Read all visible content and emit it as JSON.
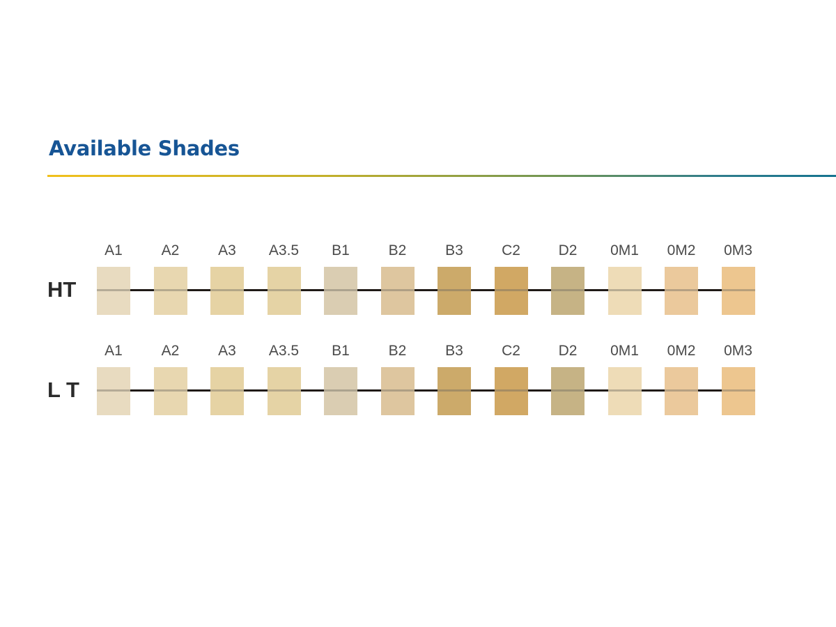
{
  "title": "Available Shades",
  "colors": {
    "title": "#175595",
    "rule_start": "#f1c01c",
    "rule_end": "#15738f"
  },
  "rows": [
    {
      "label": "HT",
      "shades": [
        {
          "code": "A1",
          "color": "#e8dbc0"
        },
        {
          "code": "A2",
          "color": "#e8d7b0"
        },
        {
          "code": "A3",
          "color": "#e6d3a4"
        },
        {
          "code": "A3.5",
          "color": "#e5d3a5"
        },
        {
          "code": "B1",
          "color": "#dacdb2"
        },
        {
          "code": "B2",
          "color": "#dec69f"
        },
        {
          "code": "B3",
          "color": "#ccaa6a"
        },
        {
          "code": "C2",
          "color": "#d1a864"
        },
        {
          "code": "D2",
          "color": "#c6b385"
        },
        {
          "code": "0M1",
          "color": "#eedcb7"
        },
        {
          "code": "0M2",
          "color": "#ebc99c"
        },
        {
          "code": "0M3",
          "color": "#edc68f"
        }
      ]
    },
    {
      "label": "L T",
      "shades": [
        {
          "code": "A1",
          "color": "#e8dbc0"
        },
        {
          "code": "A2",
          "color": "#e8d7b0"
        },
        {
          "code": "A3",
          "color": "#e6d3a4"
        },
        {
          "code": "A3.5",
          "color": "#e5d3a5"
        },
        {
          "code": "B1",
          "color": "#dacdb2"
        },
        {
          "code": "B2",
          "color": "#dec69f"
        },
        {
          "code": "B3",
          "color": "#ccaa6a"
        },
        {
          "code": "C2",
          "color": "#d1a864"
        },
        {
          "code": "D2",
          "color": "#c6b385"
        },
        {
          "code": "0M1",
          "color": "#eedcb7"
        },
        {
          "code": "0M2",
          "color": "#ebc99c"
        },
        {
          "code": "0M3",
          "color": "#edc68f"
        }
      ]
    }
  ]
}
